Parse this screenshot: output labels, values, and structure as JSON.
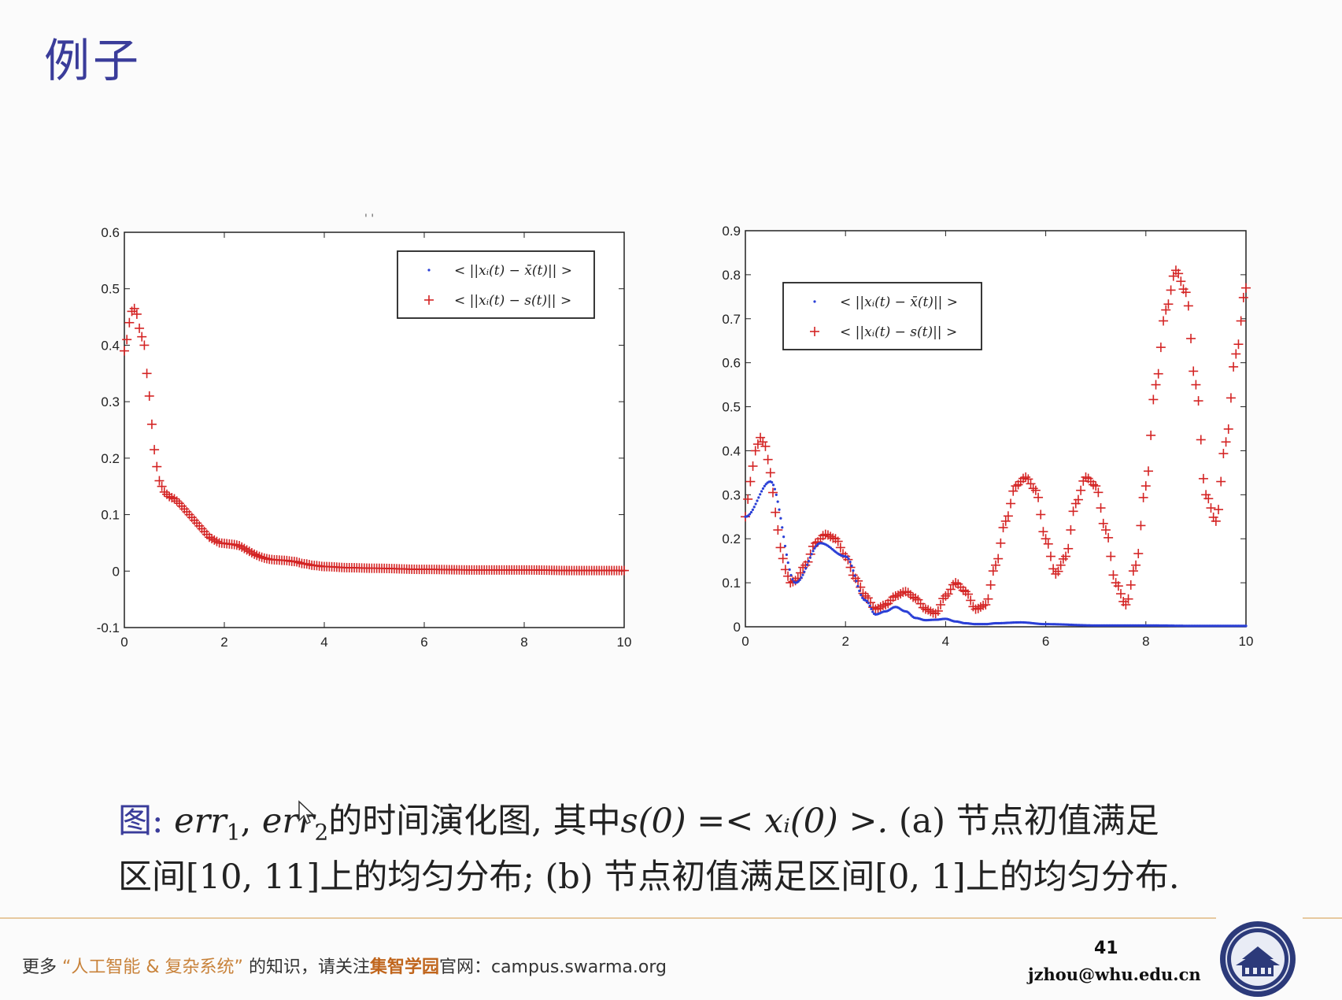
{
  "slide": {
    "title": "例子",
    "stray_mark": "' '"
  },
  "chart_data": [
    {
      "type": "scatter",
      "id": "a",
      "xlim": [
        0,
        10
      ],
      "ylim": [
        -0.1,
        0.6
      ],
      "xticks": [
        "0",
        "2",
        "4",
        "6",
        "8",
        "10"
      ],
      "yticks": [
        "-0.1",
        "0",
        "0.1",
        "0.2",
        "0.3",
        "0.4",
        "0.5",
        "0.6"
      ],
      "legend_position": "top-right",
      "legend": [
        {
          "marker": "dot",
          "color": "#2a3fd6",
          "label": "< ||xᵢ(t) − x̄(t)|| >"
        },
        {
          "marker": "plus",
          "color": "#d42424",
          "label": "< ||xᵢ(t) − s(t)|| >"
        }
      ],
      "series": [
        {
          "marker": "plus",
          "color": "#d42424",
          "x": [
            0.0,
            0.05,
            0.1,
            0.15,
            0.2,
            0.25,
            0.3,
            0.4,
            0.45,
            0.5,
            0.55,
            0.6,
            0.65,
            0.7,
            0.8,
            0.9,
            1.0,
            1.1,
            1.2,
            1.3,
            1.4,
            1.5,
            1.6,
            1.7,
            1.8,
            1.9,
            2.0,
            2.1,
            2.2,
            2.3,
            2.4,
            2.5,
            2.6,
            2.7,
            2.8,
            2.9,
            3.0,
            3.2,
            3.4,
            3.6,
            3.8,
            4.0,
            4.5,
            5.0,
            6.0,
            7.0,
            8.0,
            9.0,
            10.0
          ],
          "y": [
            0.39,
            0.41,
            0.44,
            0.46,
            0.465,
            0.455,
            0.43,
            0.4,
            0.35,
            0.31,
            0.26,
            0.215,
            0.185,
            0.16,
            0.14,
            0.132,
            0.128,
            0.12,
            0.11,
            0.1,
            0.09,
            0.08,
            0.07,
            0.06,
            0.055,
            0.05,
            0.049,
            0.048,
            0.047,
            0.045,
            0.04,
            0.035,
            0.03,
            0.026,
            0.023,
            0.021,
            0.02,
            0.019,
            0.017,
            0.013,
            0.01,
            0.008,
            0.006,
            0.005,
            0.003,
            0.002,
            0.002,
            0.001,
            0.001
          ]
        }
      ]
    },
    {
      "type": "scatter",
      "id": "b",
      "xlim": [
        0,
        10
      ],
      "ylim": [
        0,
        0.9
      ],
      "xticks": [
        "0",
        "2",
        "4",
        "6",
        "8",
        "10"
      ],
      "yticks": [
        "0",
        "0.1",
        "0.2",
        "0.3",
        "0.4",
        "0.5",
        "0.6",
        "0.7",
        "0.8",
        "0.9"
      ],
      "legend_position": "top-left",
      "legend": [
        {
          "marker": "dot",
          "color": "#2a3fd6",
          "label": "< ||xᵢ(t) − x̄(t)|| >"
        },
        {
          "marker": "plus",
          "color": "#d42424",
          "label": "< ||xᵢ(t) − s(t)|| >"
        }
      ],
      "series": [
        {
          "marker": "plus",
          "color": "#d42424",
          "x": [
            0.0,
            0.1,
            0.2,
            0.3,
            0.4,
            0.5,
            0.6,
            0.7,
            0.8,
            0.9,
            1.0,
            1.2,
            1.4,
            1.6,
            1.8,
            2.0,
            2.2,
            2.4,
            2.6,
            2.8,
            3.0,
            3.2,
            3.4,
            3.6,
            3.8,
            4.0,
            4.2,
            4.4,
            4.6,
            4.8,
            5.0,
            5.2,
            5.4,
            5.6,
            5.8,
            6.0,
            6.2,
            6.4,
            6.6,
            6.8,
            7.0,
            7.2,
            7.4,
            7.6,
            7.8,
            8.0,
            8.2,
            8.4,
            8.6,
            8.8,
            9.0,
            9.2,
            9.4,
            9.6,
            9.8,
            10.0
          ],
          "y": [
            0.25,
            0.33,
            0.4,
            0.43,
            0.41,
            0.35,
            0.26,
            0.18,
            0.13,
            0.1,
            0.105,
            0.14,
            0.19,
            0.21,
            0.2,
            0.16,
            0.11,
            0.07,
            0.04,
            0.05,
            0.07,
            0.08,
            0.065,
            0.04,
            0.03,
            0.07,
            0.1,
            0.08,
            0.04,
            0.05,
            0.14,
            0.24,
            0.32,
            0.34,
            0.31,
            0.2,
            0.12,
            0.16,
            0.28,
            0.34,
            0.32,
            0.22,
            0.1,
            0.05,
            0.14,
            0.32,
            0.55,
            0.72,
            0.81,
            0.76,
            0.55,
            0.3,
            0.24,
            0.42,
            0.62,
            0.77
          ]
        },
        {
          "marker": "dot",
          "color": "#2a3fd6",
          "x": [
            0.0,
            0.5,
            1.0,
            1.5,
            2.0,
            2.4,
            2.6,
            2.8,
            3.0,
            3.2,
            3.4,
            3.6,
            3.8,
            4.0,
            4.2,
            4.4,
            4.6,
            4.8,
            5.0,
            5.5,
            6.0,
            7.0,
            8.0,
            9.0,
            10.0
          ],
          "y": [
            0.25,
            0.33,
            0.1,
            0.19,
            0.16,
            0.06,
            0.028,
            0.035,
            0.045,
            0.035,
            0.02,
            0.015,
            0.016,
            0.018,
            0.012,
            0.008,
            0.006,
            0.006,
            0.008,
            0.01,
            0.006,
            0.003,
            0.003,
            0.002,
            0.002
          ]
        }
      ]
    }
  ],
  "caption": {
    "lead": "图:",
    "line1_math_a": "err",
    "line1_sub1": "1",
    "line1_comma": ", ",
    "line1_math_b": "err",
    "line1_sub2": "2",
    "line1_text": "的时间演化图, 其中",
    "line1_formula": "s(0) =< xᵢ(0) >. ",
    "line1_tail": "(a) 节点初值满足",
    "line2": "区间[10, 11]上的均匀分布; (b) 节点初值满足区间[0, 1]上的均匀分布."
  },
  "footer": {
    "prefix": "更多",
    "quote_topic": "“人工智能 & 复杂系统”",
    "middle": "的知识，请关注",
    "brand": "集智学园",
    "suffix": "官网：campus.swarma.org",
    "page_number": "41",
    "email": "jzhou@whu.edu.cn"
  },
  "logo": {
    "name": "university-seal",
    "color": "#2c3a7a"
  }
}
